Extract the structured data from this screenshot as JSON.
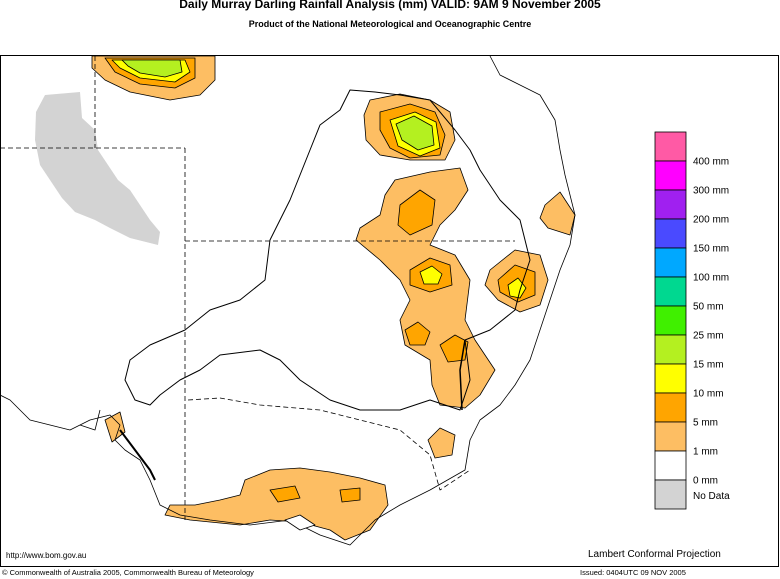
{
  "header": {
    "title": "Daily Murray Darling Rainfall Analysis (mm)  VALID: 9AM  9 November 2005",
    "subtitle": "Product of the National Meteorological and Oceanographic Centre"
  },
  "legend": {
    "entries": [
      {
        "color": "#ff5aa5",
        "label": "400 mm"
      },
      {
        "color": "#ff00ff",
        "label": "300 mm"
      },
      {
        "color": "#a020f0",
        "label": "200 mm"
      },
      {
        "color": "#4a4aff",
        "label": "150 mm"
      },
      {
        "color": "#00a8ff",
        "label": "100 mm"
      },
      {
        "color": "#00d890",
        "label": "50 mm"
      },
      {
        "color": "#40f000",
        "label": "25 mm"
      },
      {
        "color": "#b4f020",
        "label": "15 mm"
      },
      {
        "color": "#ffff00",
        "label": "10 mm"
      },
      {
        "color": "#ffa500",
        "label": "5 mm"
      },
      {
        "color": "#fdbe63",
        "label": "1 mm"
      },
      {
        "color": "#ffffff",
        "label": "0 mm"
      },
      {
        "color": "#d3d3d3",
        "label": "No Data"
      }
    ]
  },
  "footer": {
    "url": "http://www.bom.gov.au",
    "projection": "Lambert Conformal Projection",
    "copyright": "© Commonwealth of Australia 2005, Commonwealth Bureau of Meteorology",
    "issued": "Issued: 0404UTC 09 NOV 2005"
  }
}
